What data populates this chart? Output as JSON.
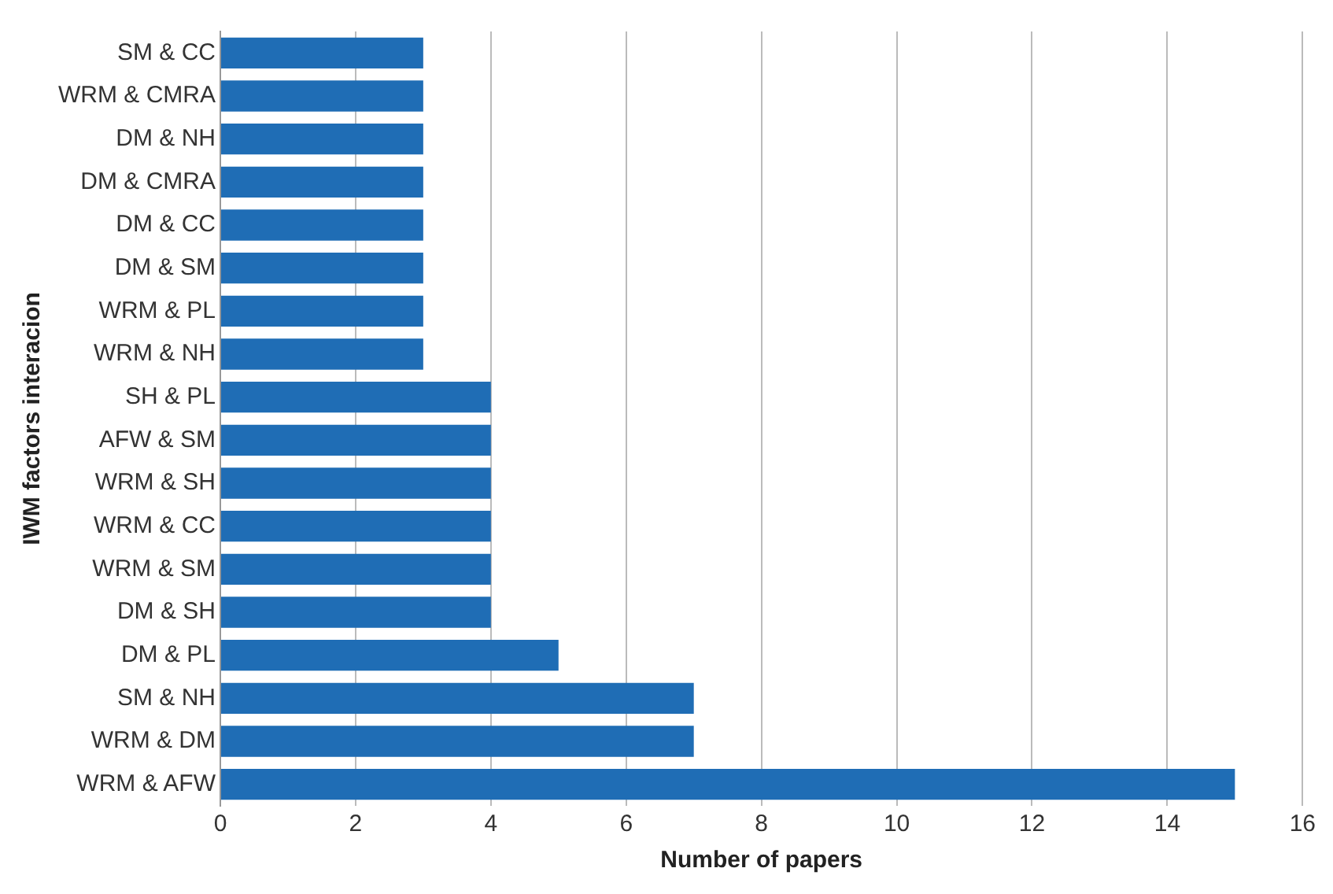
{
  "chart_data": {
    "type": "bar",
    "orientation": "horizontal",
    "xlabel": "Number of papers",
    "ylabel": "IWM factors interacion",
    "categories": [
      "SM & CC",
      "WRM & CMRA",
      "DM & NH",
      "DM & CMRA",
      "DM & CC",
      "DM & SM",
      "WRM & PL",
      "WRM & NH",
      "SH & PL",
      "AFW & SM",
      "WRM & SH",
      "WRM & CC",
      "WRM & SM",
      "DM & SH",
      "DM & PL",
      "SM & NH",
      "WRM & DM",
      "WRM & AFW"
    ],
    "values": [
      3,
      3,
      3,
      3,
      3,
      3,
      3,
      3,
      4,
      4,
      4,
      4,
      4,
      4,
      5,
      7,
      7,
      15
    ],
    "color": "#1f6db5",
    "xlim": [
      0,
      16
    ],
    "xticks": [
      0,
      2,
      4,
      6,
      8,
      10,
      12,
      14,
      16
    ],
    "grid": "x",
    "legend": false
  }
}
